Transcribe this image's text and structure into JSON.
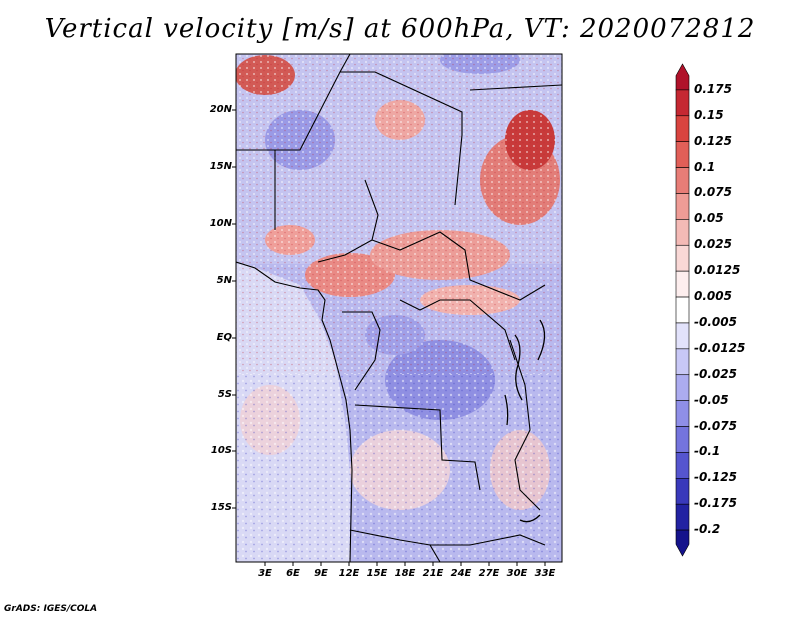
{
  "title": "Vertical velocity [m/s] at 600hPa, VT: 2020072812",
  "credit": "GrADS: IGES/COLA",
  "map": {
    "lat_labels": [
      "20N",
      "15N",
      "10N",
      "5N",
      "EQ",
      "5S",
      "10S",
      "15S"
    ],
    "lon_labels": [
      "3E",
      "6E",
      "9E",
      "12E",
      "15E",
      "18E",
      "21E",
      "24E",
      "27E",
      "30E",
      "33E"
    ]
  },
  "colorbar": {
    "labels": [
      "0.175",
      "0.15",
      "0.125",
      "0.1",
      "0.075",
      "0.05",
      "0.025",
      "0.0125",
      "0.005",
      "-0.005",
      "-0.0125",
      "-0.025",
      "-0.05",
      "-0.075",
      "-0.1",
      "-0.125",
      "-0.175",
      "-0.2"
    ],
    "colors": [
      "#b0122a",
      "#c52832",
      "#d9443f",
      "#e15f58",
      "#e87d77",
      "#ef9c96",
      "#f4bab6",
      "#f9d8d6",
      "#fdeeee",
      "#ffffff",
      "#e2e2fb",
      "#c8c8f6",
      "#acacf0",
      "#8f8fe8",
      "#7474dd",
      "#5555cf",
      "#3939bb",
      "#2222a2",
      "#15138c"
    ]
  },
  "legend": {
    "colors": {
      "strong_up": "#c01f2e",
      "weak_up": "#f2b3b0",
      "weak_down": "#c9c9f5",
      "strong_down": "#3a3ac0",
      "border": "#000000"
    }
  }
}
